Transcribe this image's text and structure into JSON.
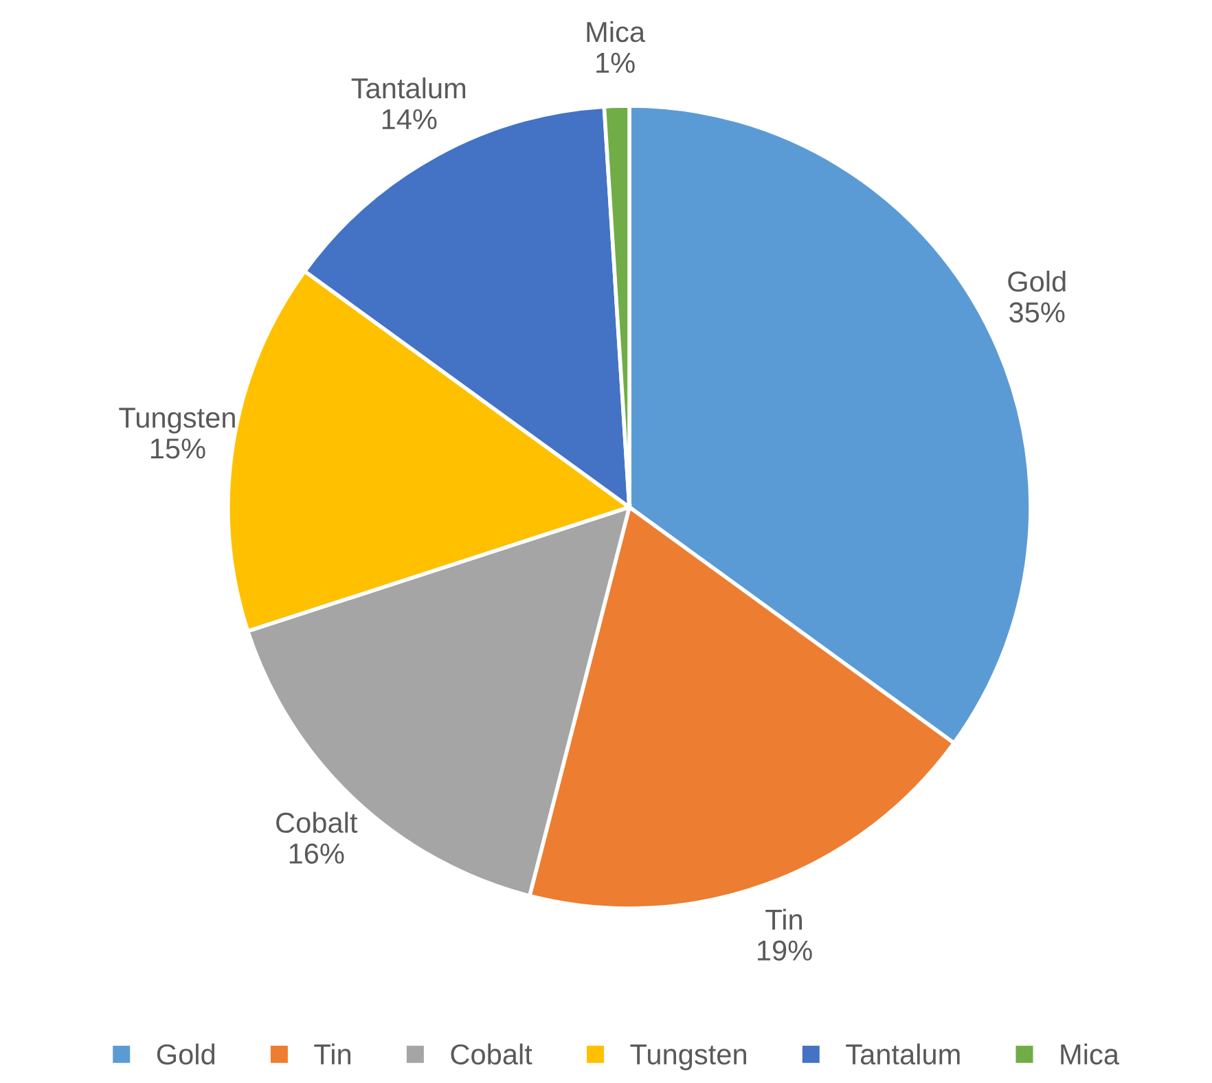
{
  "chart_data": {
    "type": "pie",
    "categories": [
      "Gold",
      "Tin",
      "Cobalt",
      "Tungsten",
      "Tantalum",
      "Mica"
    ],
    "values": [
      35,
      19,
      16,
      15,
      14,
      1
    ],
    "value_labels": [
      "35%",
      "19%",
      "16%",
      "15%",
      "14%",
      "1%"
    ],
    "colors": [
      "#5b9bd5",
      "#ed7d31",
      "#a5a5a5",
      "#ffc000",
      "#4472c4",
      "#70ad47"
    ],
    "legend": "bottom"
  }
}
